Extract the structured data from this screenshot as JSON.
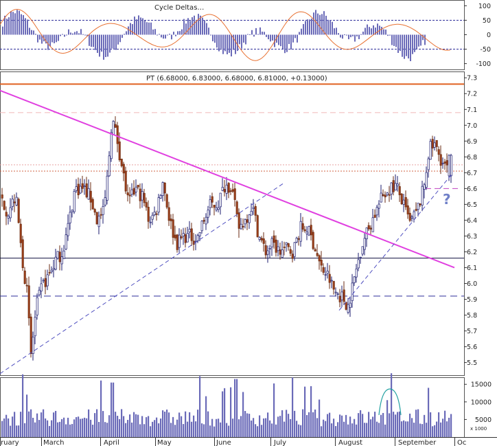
{
  "chart_data": [
    {
      "type": "line",
      "panel": "oscillator",
      "title": "Cycle Deltas…",
      "yticks": [
        100,
        50,
        0,
        -50,
        -100
      ],
      "ylim": [
        -120,
        120
      ],
      "reference_levels": [
        50,
        -50
      ],
      "colors": {
        "line": "#e87030",
        "histogram": "#6a6ab8",
        "reference": "#2d2d9a"
      }
    },
    {
      "type": "candlestick",
      "panel": "price",
      "title": "PT (6.68000, 6.83000, 6.68000, 6.81000, +0.13000)",
      "yticks": [
        7.3,
        7.2,
        7.1,
        7.0,
        6.9,
        6.8,
        6.7,
        6.6,
        6.5,
        6.4,
        6.3,
        6.2,
        6.1,
        6.0,
        5.9,
        5.8,
        5.7,
        5.6,
        5.5
      ],
      "ylim": [
        5.42,
        7.34
      ],
      "last_bar": {
        "open": 6.68,
        "high": 6.83,
        "low": 6.68,
        "close": 6.81,
        "change": 0.13
      },
      "horizontal_levels": [
        {
          "value": 7.26,
          "style": "solid",
          "color": "#e06020"
        },
        {
          "value": 7.08,
          "style": "dashed",
          "color": "#f0b8b8"
        },
        {
          "value": 6.75,
          "style": "dotted",
          "color": "#e8a0a0"
        },
        {
          "value": 6.71,
          "style": "dotted",
          "color": "#d06040"
        },
        {
          "value": 6.6,
          "style": "dashed",
          "color": "#c040c0"
        },
        {
          "value": 6.16,
          "style": "solid",
          "color": "#101040"
        },
        {
          "value": 5.92,
          "style": "dashed",
          "color": "#2d2d9a"
        }
      ],
      "trendlines": [
        {
          "from": [
            "start",
            7.22
          ],
          "to": [
            "late-Sep",
            6.1
          ],
          "color": "#e040e0",
          "style": "solid"
        },
        {
          "from": [
            "start",
            5.43
          ],
          "to": [
            "mid-Jul",
            6.63
          ],
          "color": "#5050c0",
          "style": "dashed"
        },
        {
          "from": [
            "early-Aug",
            5.83
          ],
          "to": [
            "late-Sep",
            6.7
          ],
          "color": "#5050c0",
          "style": "dashed"
        }
      ],
      "annotation": "?",
      "colors": {
        "up_body": "#ffffff",
        "up_border": "#1a1a6e",
        "down_body": "#a0401a",
        "down_border": "#6a2a10"
      }
    },
    {
      "type": "bar",
      "panel": "volume",
      "yticks": [
        15000,
        10000,
        5000
      ],
      "ylim": [
        0,
        17000
      ],
      "scale_label": "x 1000",
      "colors": {
        "bar": "#6a6ab8",
        "arc": "#20a0a0"
      }
    }
  ],
  "x_axis": {
    "labels": [
      "ruary",
      "March",
      "April",
      "May",
      "June",
      "July",
      "August",
      "September",
      "Oc"
    ]
  },
  "oscillator_yticks_text": [
    "100",
    "50",
    "0",
    "-50",
    "-100"
  ],
  "price_title": "PT (6.68000, 6.83000, 6.68000, 6.81000, +0.13000)",
  "oscillator_title": "Cycle Deltas…",
  "volume_scale_label": "x 1000",
  "annotation_text": "?"
}
